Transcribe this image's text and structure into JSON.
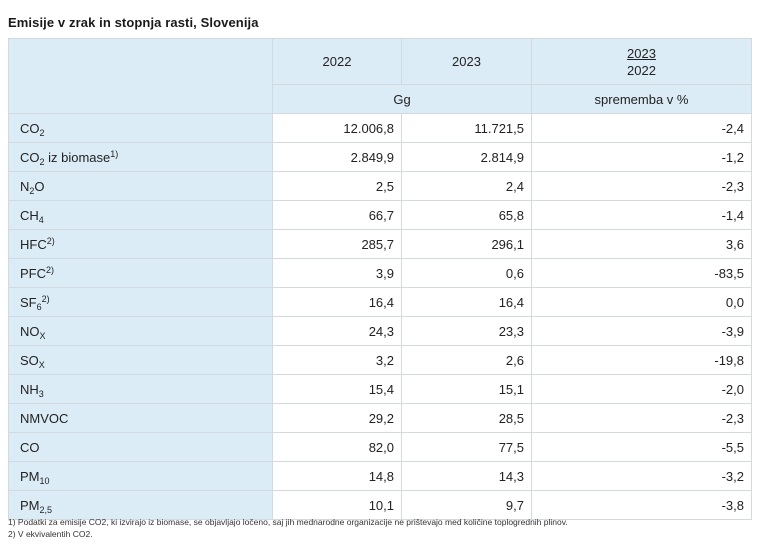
{
  "title": "Emisije v zrak in stopnja rasti, Slovenija",
  "header": {
    "col_2022": "2022",
    "col_2023": "2023",
    "ratio_numerator": "2023",
    "ratio_denominator": "2022",
    "unit": "Gg",
    "change_unit": "sprememba v %"
  },
  "rows": [
    {
      "base": "CO",
      "sub": "2",
      "suffix": "",
      "sup": "",
      "v2022": "12.006,8",
      "v2023": "11.721,5",
      "change": "-2,4"
    },
    {
      "base": "CO",
      "sub": "2",
      "suffix": " iz biomase",
      "sup": "1)",
      "v2022": "2.849,9",
      "v2023": "2.814,9",
      "change": "-1,2"
    },
    {
      "base": "N",
      "sub": "2",
      "suffix": "O",
      "sup": "",
      "v2022": "2,5",
      "v2023": "2,4",
      "change": "-2,3"
    },
    {
      "base": "CH",
      "sub": "4",
      "suffix": "",
      "sup": "",
      "v2022": "66,7",
      "v2023": "65,8",
      "change": "-1,4"
    },
    {
      "base": "HFC",
      "sub": "",
      "suffix": "",
      "sup": "2)",
      "v2022": "285,7",
      "v2023": "296,1",
      "change": "3,6"
    },
    {
      "base": "PFC",
      "sub": "",
      "suffix": "",
      "sup": "2)",
      "v2022": "3,9",
      "v2023": "0,6",
      "change": "-83,5"
    },
    {
      "base": "SF",
      "sub": "6",
      "suffix": "",
      "sup": "2)",
      "v2022": "16,4",
      "v2023": "16,4",
      "change": "0,0"
    },
    {
      "base": "NO",
      "sub": "X",
      "suffix": "",
      "sup": "",
      "v2022": "24,3",
      "v2023": "23,3",
      "change": "-3,9"
    },
    {
      "base": "SO",
      "sub": "X",
      "suffix": "",
      "sup": "",
      "v2022": "3,2",
      "v2023": "2,6",
      "change": "-19,8"
    },
    {
      "base": "NH",
      "sub": "3",
      "suffix": "",
      "sup": "",
      "v2022": "15,4",
      "v2023": "15,1",
      "change": "-2,0"
    },
    {
      "base": "NMVOC",
      "sub": "",
      "suffix": "",
      "sup": "",
      "v2022": "29,2",
      "v2023": "28,5",
      "change": "-2,3"
    },
    {
      "base": "CO",
      "sub": "",
      "suffix": "",
      "sup": "",
      "v2022": "82,0",
      "v2023": "77,5",
      "change": "-5,5"
    },
    {
      "base": "PM",
      "sub": "10",
      "suffix": "",
      "sup": "",
      "v2022": "14,8",
      "v2023": "14,3",
      "change": "-3,2"
    },
    {
      "base": "PM",
      "sub": "2,5",
      "suffix": "",
      "sup": "",
      "v2022": "10,1",
      "v2023": "9,7",
      "change": "-3,8"
    }
  ],
  "footnotes": [
    "1) Podatki za emisije CO2, ki izvirajo iz biomase, se objavljajo ločeno, saj jih mednarodne organizacije ne prištevajo med količine toplogrednih plinov.",
    "2) V ekvivalentih CO2."
  ]
}
